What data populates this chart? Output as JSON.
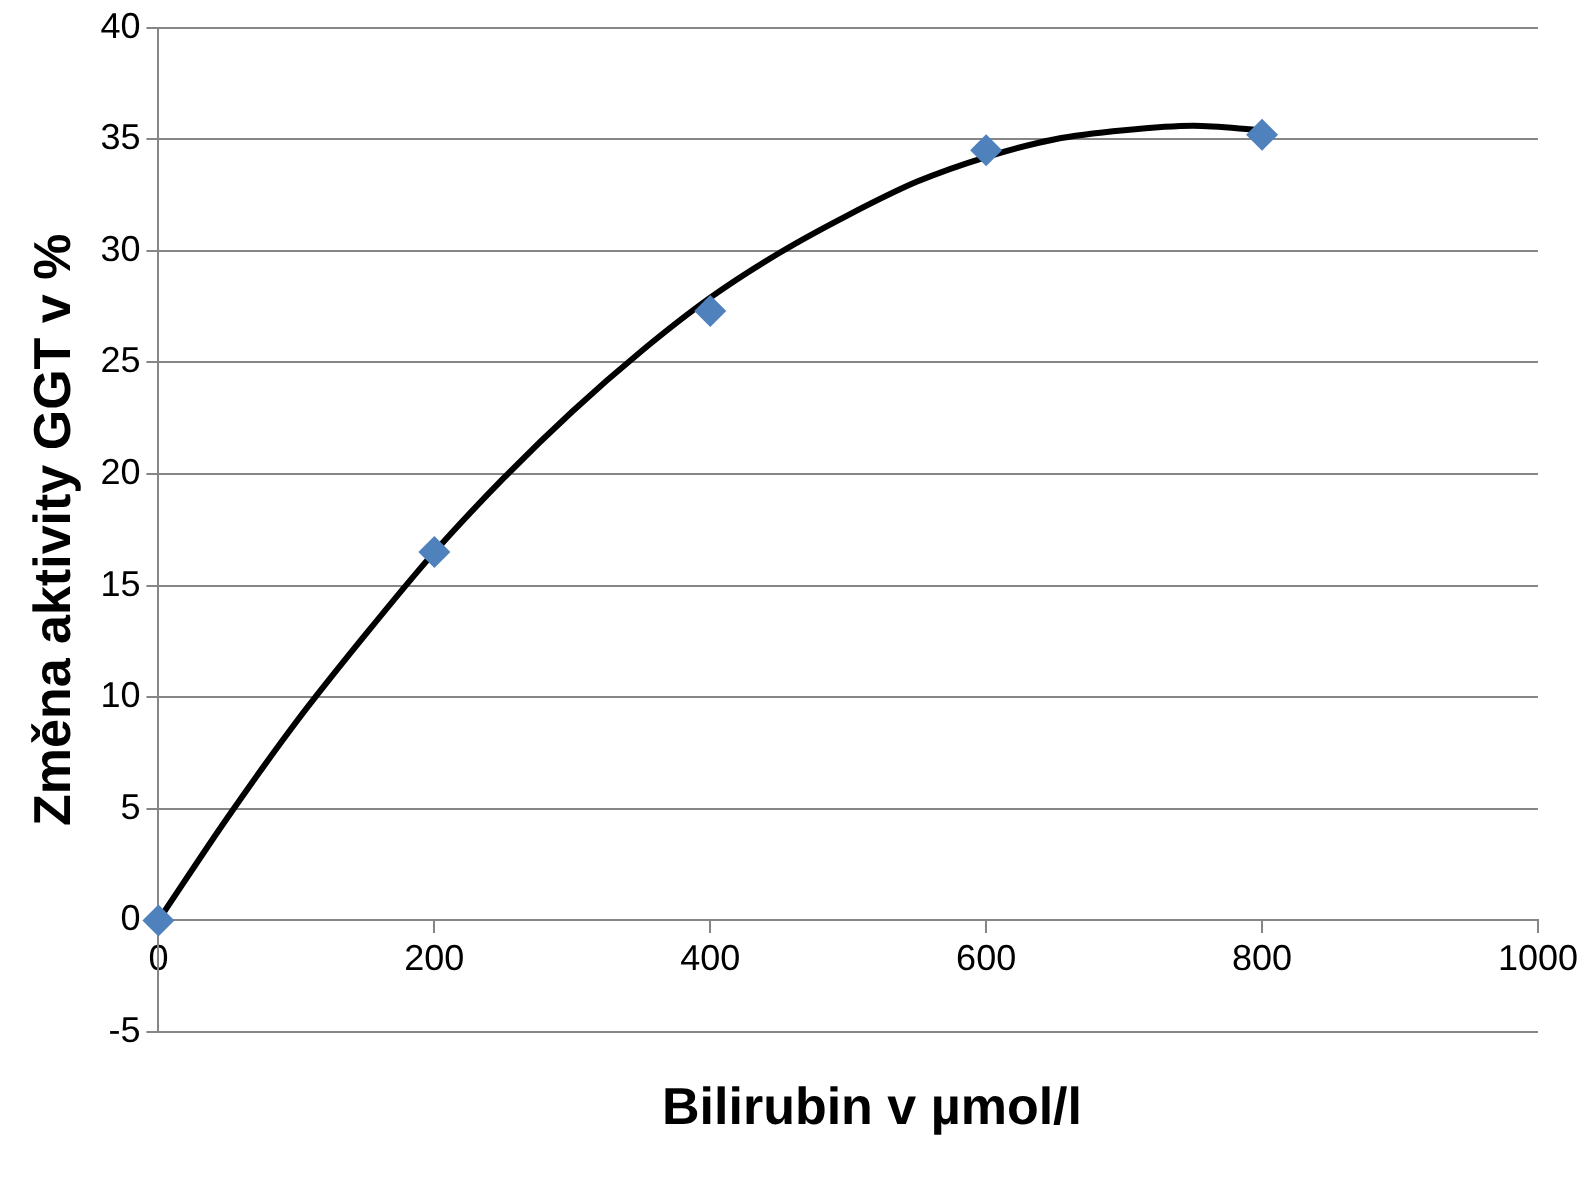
{
  "chart_data": {
    "type": "scatter",
    "xlabel": "Bilirubin v µmol/l",
    "ylabel": "Změna aktivity GGT v %",
    "xlim": [
      0,
      1000
    ],
    "xticks": [
      0,
      200,
      400,
      600,
      800,
      1000
    ],
    "ylim": [
      -5,
      40
    ],
    "yticks": [
      -5,
      0,
      5,
      10,
      15,
      20,
      25,
      30,
      35,
      40
    ],
    "grid": "y",
    "marker": "diamond",
    "series": [
      {
        "type": "scatter",
        "color": "#4f81bd",
        "x": [
          0,
          200,
          400,
          600,
          800
        ],
        "values": [
          0,
          16.5,
          27.3,
          34.5,
          35.2
        ]
      },
      {
        "type": "line",
        "color": "#000000",
        "marker": "none",
        "x": [
          0,
          50,
          100,
          150,
          200,
          250,
          300,
          350,
          400,
          450,
          500,
          550,
          600,
          650,
          700,
          750,
          800
        ],
        "values": [
          0,
          4.6,
          8.9,
          12.8,
          16.5,
          19.8,
          22.8,
          25.5,
          27.9,
          29.9,
          31.6,
          33.1,
          34.2,
          35.0,
          35.4,
          35.6,
          35.4
        ]
      }
    ]
  }
}
